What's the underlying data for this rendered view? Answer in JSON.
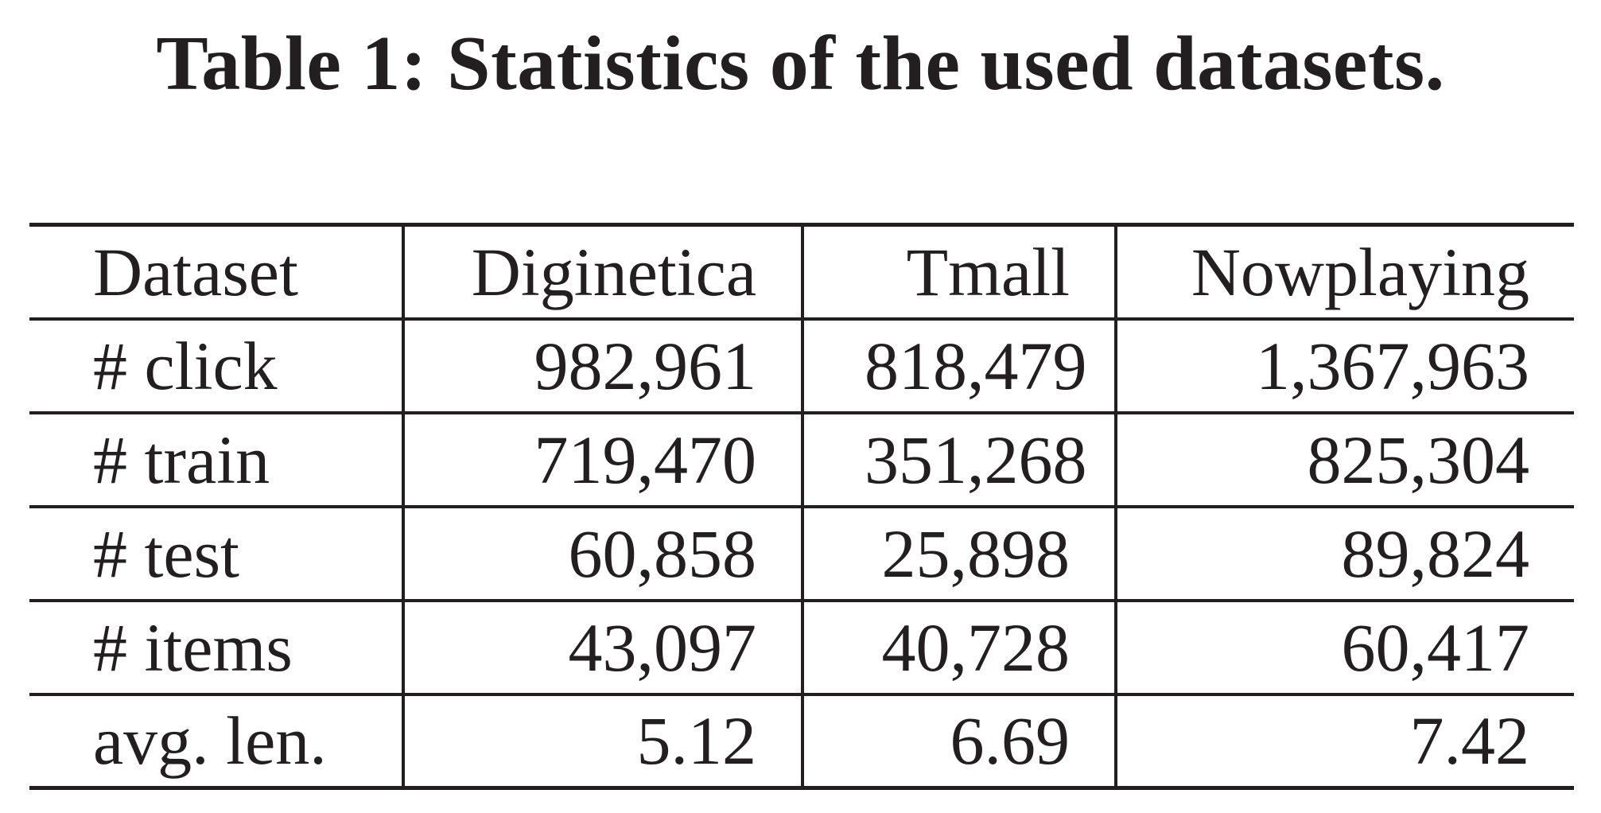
{
  "caption": "Table 1: Statistics of the used datasets.",
  "table": {
    "headers": [
      "Dataset",
      "Diginetica",
      "Tmall",
      "Nowplaying"
    ],
    "rows": [
      [
        "# click",
        "982,961",
        "818,479",
        "1,367,963"
      ],
      [
        "# train",
        "719,470",
        "351,268",
        "825,304"
      ],
      [
        "# test",
        "60,858",
        "25,898",
        "89,824"
      ],
      [
        "# items",
        "43,097",
        "40,728",
        "60,417"
      ],
      [
        "avg. len.",
        "5.12",
        "6.69",
        "7.42"
      ]
    ]
  }
}
